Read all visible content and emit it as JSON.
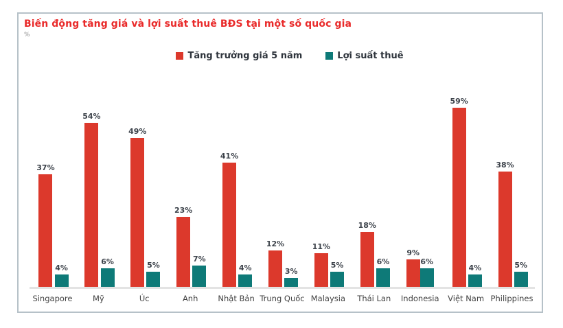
{
  "title": "Biến động tăng giá và lợi suất thuê BĐS tại một số quốc gia",
  "unit_label": "%",
  "colors": {
    "title_red": "#e92a2a",
    "bar_red": "#dc392c",
    "bar_teal": "#0e7a78",
    "frame_border": "#b6c1c8",
    "axis_line": "#e3e3e3"
  },
  "legend": [
    {
      "label": "Tăng trưởng giá 5 năm",
      "color": "#dc392c"
    },
    {
      "label": "Lợi suất thuê",
      "color": "#0e7a78"
    }
  ],
  "chart_data": {
    "type": "bar",
    "title": "Biến động tăng giá và lợi suất thuê BĐS tại một số quốc gia",
    "xlabel": "",
    "ylabel": "%",
    "categories": [
      "Singapore",
      "Mỹ",
      "Úc",
      "Anh",
      "Nhật Bản",
      "Trung Quốc",
      "Malaysia",
      "Thái Lan",
      "Indonesia",
      "Việt Nam",
      "Philippines"
    ],
    "series": [
      {
        "name": "Tăng trưởng giá 5 năm",
        "color": "#dc392c",
        "values": [
          37,
          54,
          49,
          23,
          41,
          12,
          11,
          18,
          9,
          59,
          38
        ]
      },
      {
        "name": "Lợi suất thuê",
        "color": "#0e7a78",
        "values": [
          4,
          6,
          5,
          7,
          4,
          3,
          5,
          6,
          6,
          4,
          5
        ]
      }
    ],
    "ylim": [
      0,
      62
    ],
    "grid": false,
    "legend_position": "top-center",
    "data_labels": true,
    "data_label_format": "{value}%"
  }
}
